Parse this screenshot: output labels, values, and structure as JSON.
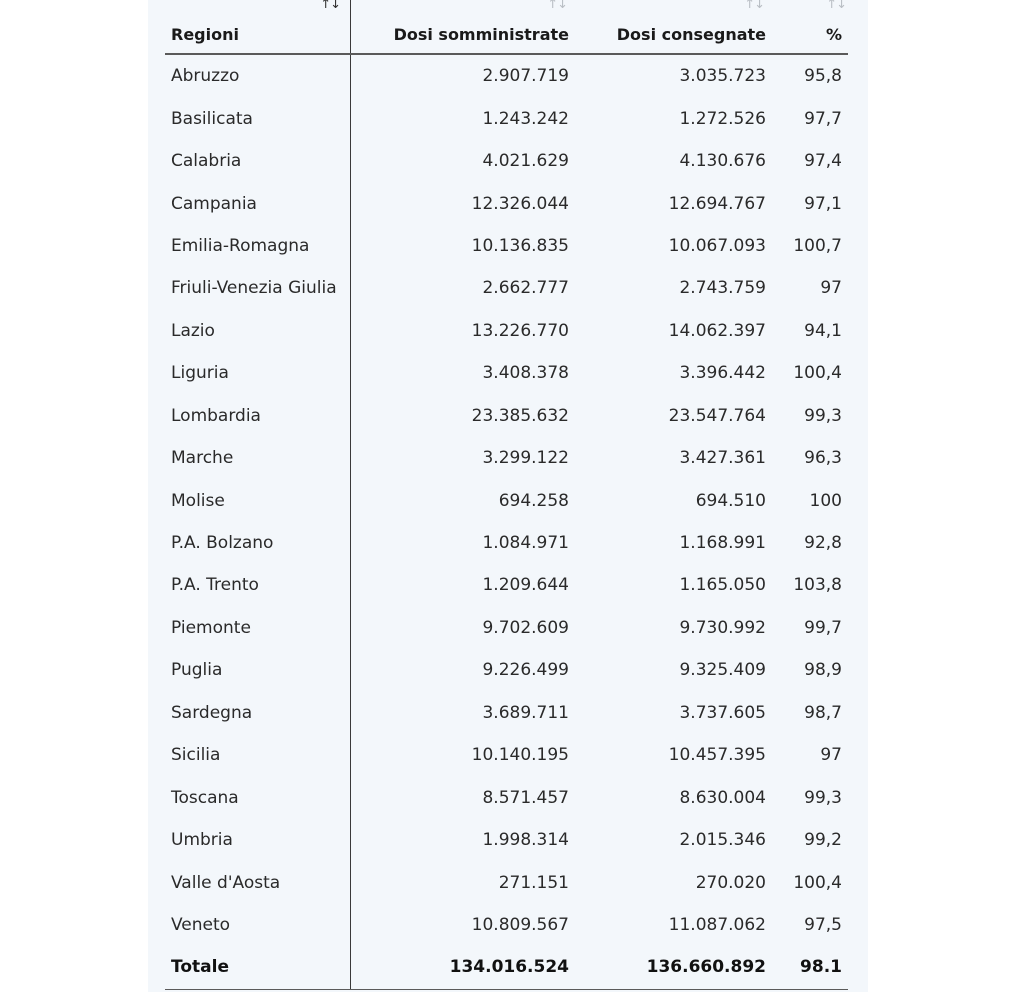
{
  "table": {
    "headers": {
      "region": "Regioni",
      "administered": "Dosi somministrate",
      "delivered": "Dosi consegnate",
      "percent": "%"
    },
    "sort_glyph": "↑↓",
    "rows": [
      {
        "region": "Abruzzo",
        "administered": "2.907.719",
        "delivered": "3.035.723",
        "percent": "95,8"
      },
      {
        "region": "Basilicata",
        "administered": "1.243.242",
        "delivered": "1.272.526",
        "percent": "97,7"
      },
      {
        "region": "Calabria",
        "administered": "4.021.629",
        "delivered": "4.130.676",
        "percent": "97,4"
      },
      {
        "region": "Campania",
        "administered": "12.326.044",
        "delivered": "12.694.767",
        "percent": "97,1"
      },
      {
        "region": "Emilia-Romagna",
        "administered": "10.136.835",
        "delivered": "10.067.093",
        "percent": "100,7"
      },
      {
        "region": "Friuli-Venezia Giulia",
        "administered": "2.662.777",
        "delivered": "2.743.759",
        "percent": "97"
      },
      {
        "region": "Lazio",
        "administered": "13.226.770",
        "delivered": "14.062.397",
        "percent": "94,1"
      },
      {
        "region": "Liguria",
        "administered": "3.408.378",
        "delivered": "3.396.442",
        "percent": "100,4"
      },
      {
        "region": "Lombardia",
        "administered": "23.385.632",
        "delivered": "23.547.764",
        "percent": "99,3"
      },
      {
        "region": "Marche",
        "administered": "3.299.122",
        "delivered": "3.427.361",
        "percent": "96,3"
      },
      {
        "region": "Molise",
        "administered": "694.258",
        "delivered": "694.510",
        "percent": "100"
      },
      {
        "region": "P.A. Bolzano",
        "administered": "1.084.971",
        "delivered": "1.168.991",
        "percent": "92,8"
      },
      {
        "region": "P.A. Trento",
        "administered": "1.209.644",
        "delivered": "1.165.050",
        "percent": "103,8"
      },
      {
        "region": "Piemonte",
        "administered": "9.702.609",
        "delivered": "9.730.992",
        "percent": "99,7"
      },
      {
        "region": "Puglia",
        "administered": "9.226.499",
        "delivered": "9.325.409",
        "percent": "98,9"
      },
      {
        "region": "Sardegna",
        "administered": "3.689.711",
        "delivered": "3.737.605",
        "percent": "98,7"
      },
      {
        "region": "Sicilia",
        "administered": "10.140.195",
        "delivered": "10.457.395",
        "percent": "97"
      },
      {
        "region": "Toscana",
        "administered": "8.571.457",
        "delivered": "8.630.004",
        "percent": "99,3"
      },
      {
        "region": "Umbria",
        "administered": "1.998.314",
        "delivered": "2.015.346",
        "percent": "99,2"
      },
      {
        "region": "Valle d'Aosta",
        "administered": "271.151",
        "delivered": "270.020",
        "percent": "100,4"
      },
      {
        "region": "Veneto",
        "administered": "10.809.567",
        "delivered": "11.087.062",
        "percent": "97,5"
      }
    ],
    "total": {
      "region": "Totale",
      "administered": "134.016.524",
      "delivered": "136.660.892",
      "percent": "98.1"
    }
  }
}
